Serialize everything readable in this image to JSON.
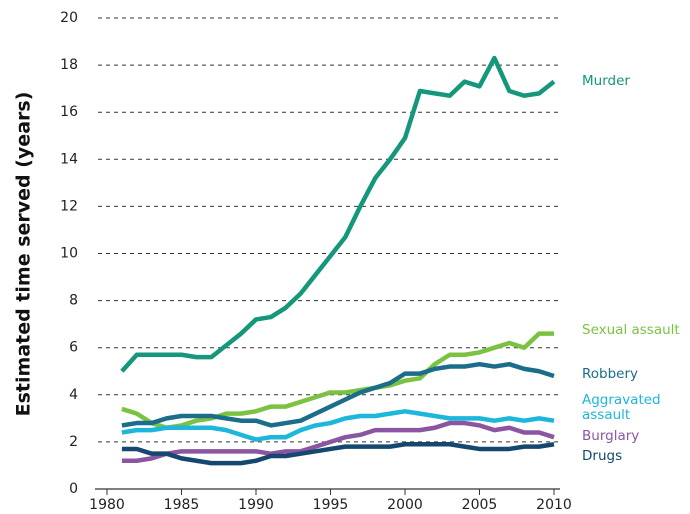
{
  "chart_data": {
    "type": "line",
    "y_label": "Estimated time served (years)",
    "x": [
      1981,
      1982,
      1983,
      1984,
      1985,
      1986,
      1987,
      1988,
      1989,
      1990,
      1991,
      1992,
      1993,
      1994,
      1995,
      1996,
      1997,
      1998,
      1999,
      2000,
      2001,
      2002,
      2003,
      2004,
      2005,
      2006,
      2007,
      2008,
      2009,
      2010
    ],
    "xlim": [
      1980,
      2010
    ],
    "xticks": [
      1980,
      1985,
      1990,
      1995,
      2000,
      2005,
      2010
    ],
    "ylim": [
      0,
      20
    ],
    "yticks": [
      0,
      2,
      4,
      6,
      8,
      10,
      12,
      14,
      16,
      18,
      20
    ],
    "grid": true,
    "series": [
      {
        "name": "Murder",
        "color": "#14977a",
        "values": [
          5.0,
          5.7,
          5.7,
          5.7,
          5.7,
          5.6,
          5.6,
          6.1,
          6.6,
          7.2,
          7.3,
          7.7,
          8.3,
          9.1,
          9.9,
          10.7,
          12.0,
          13.2,
          14.0,
          14.9,
          16.9,
          16.8,
          16.7,
          17.3,
          17.1,
          18.3,
          16.9,
          16.7,
          16.8,
          17.3
        ]
      },
      {
        "name": "Sexual assault",
        "color": "#7cc242",
        "values": [
          3.4,
          3.2,
          2.8,
          2.6,
          2.7,
          2.9,
          3.0,
          3.2,
          3.2,
          3.3,
          3.5,
          3.5,
          3.7,
          3.9,
          4.1,
          4.1,
          4.2,
          4.3,
          4.4,
          4.6,
          4.7,
          5.3,
          5.7,
          5.7,
          5.8,
          6.0,
          6.2,
          6.0,
          6.6,
          6.6
        ]
      },
      {
        "name": "Robbery",
        "color": "#1a6e89",
        "values": [
          2.7,
          2.8,
          2.8,
          3.0,
          3.1,
          3.1,
          3.1,
          3.0,
          2.9,
          2.9,
          2.7,
          2.8,
          2.9,
          3.2,
          3.5,
          3.8,
          4.1,
          4.3,
          4.5,
          4.9,
          4.9,
          5.1,
          5.2,
          5.2,
          5.3,
          5.2,
          5.3,
          5.1,
          5.0,
          4.8
        ]
      },
      {
        "name": "Aggravated assault",
        "color": "#1db7dc",
        "values": [
          2.4,
          2.5,
          2.5,
          2.6,
          2.6,
          2.6,
          2.6,
          2.5,
          2.3,
          2.1,
          2.2,
          2.2,
          2.5,
          2.7,
          2.8,
          3.0,
          3.1,
          3.1,
          3.2,
          3.3,
          3.2,
          3.1,
          3.0,
          3.0,
          3.0,
          2.9,
          3.0,
          2.9,
          3.0,
          2.9
        ]
      },
      {
        "name": "Burglary",
        "color": "#8b55a1",
        "values": [
          1.2,
          1.2,
          1.3,
          1.5,
          1.6,
          1.6,
          1.6,
          1.6,
          1.6,
          1.6,
          1.5,
          1.6,
          1.6,
          1.8,
          2.0,
          2.2,
          2.3,
          2.5,
          2.5,
          2.5,
          2.5,
          2.6,
          2.8,
          2.8,
          2.7,
          2.5,
          2.6,
          2.4,
          2.4,
          2.2
        ]
      },
      {
        "name": "Drugs",
        "color": "#15476f",
        "values": [
          1.7,
          1.7,
          1.5,
          1.5,
          1.3,
          1.2,
          1.1,
          1.1,
          1.1,
          1.2,
          1.4,
          1.4,
          1.5,
          1.6,
          1.7,
          1.8,
          1.8,
          1.8,
          1.8,
          1.9,
          1.9,
          1.9,
          1.9,
          1.8,
          1.7,
          1.7,
          1.7,
          1.8,
          1.8,
          1.9
        ]
      }
    ]
  }
}
